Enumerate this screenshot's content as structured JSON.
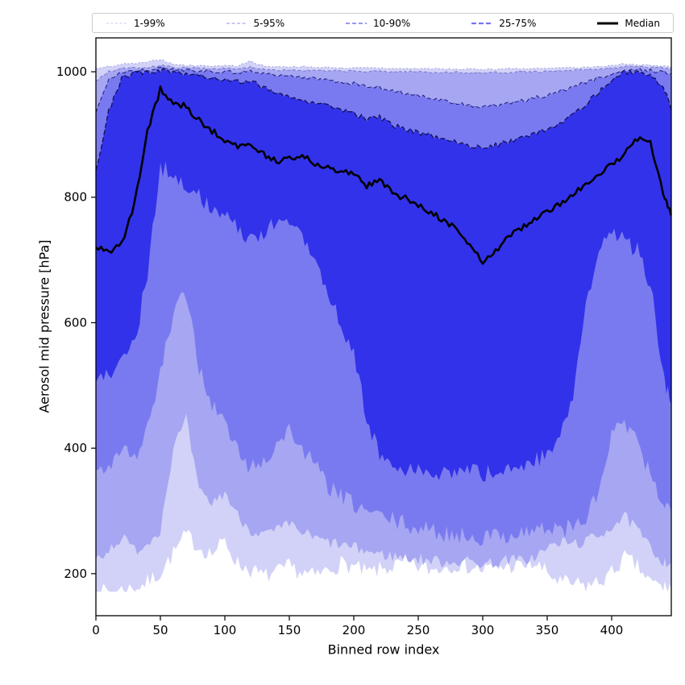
{
  "figure": {
    "background": "#ffffff"
  },
  "chart_data": {
    "type": "area",
    "description": "Percentile fan chart of aerosol mid pressure per binned row index",
    "xlabel": "Binned row index",
    "ylabel": "Aerosol mid pressure [hPa]",
    "xlim": [
      0,
      446.25
    ],
    "ylim": [
      133,
      1054
    ],
    "xticks": [
      0,
      50,
      100,
      150,
      200,
      250,
      300,
      350,
      400
    ],
    "yticks": [
      200,
      400,
      600,
      800,
      1000
    ],
    "grid": false,
    "legend_position": "top",
    "frame_color": "#000000",
    "x": [
      0,
      10,
      20,
      30,
      40,
      50,
      60,
      70,
      80,
      90,
      100,
      110,
      120,
      130,
      140,
      150,
      160,
      170,
      180,
      190,
      200,
      210,
      220,
      230,
      240,
      250,
      260,
      270,
      280,
      290,
      300,
      310,
      320,
      330,
      340,
      350,
      360,
      370,
      380,
      390,
      400,
      410,
      420,
      430,
      440,
      446
    ],
    "series": {
      "p1": [
        171,
        171,
        174,
        177,
        186,
        202,
        232,
        262,
        242,
        232,
        252,
        216,
        206,
        196,
        201,
        211,
        201,
        196,
        206,
        216,
        211,
        201,
        206,
        211,
        216,
        211,
        206,
        211,
        216,
        211,
        206,
        209,
        213,
        211,
        216,
        201,
        186,
        183,
        181,
        186,
        201,
        226,
        211,
        186,
        179,
        177
      ],
      "p5": [
        225,
        238,
        258,
        238,
        248,
        272,
        400,
        445,
        330,
        312,
        330,
        292,
        270,
        262,
        268,
        278,
        266,
        256,
        250,
        246,
        241,
        236,
        231,
        228,
        226,
        223,
        221,
        219,
        220,
        219,
        216,
        218,
        222,
        221,
        226,
        240,
        250,
        248,
        251,
        261,
        276,
        290,
        270,
        240,
        221,
        216
      ],
      "p10": [
        365,
        372,
        405,
        385,
        430,
        520,
        610,
        648,
        530,
        470,
        440,
        395,
        368,
        378,
        405,
        430,
        398,
        372,
        340,
        322,
        310,
        300,
        292,
        285,
        278,
        272,
        268,
        264,
        262,
        260,
        258,
        260,
        263,
        266,
        270,
        272,
        270,
        274,
        288,
        330,
        420,
        442,
        405,
        355,
        315,
        300
      ],
      "p25": [
        505,
        515,
        545,
        565,
        680,
        848,
        840,
        820,
        800,
        785,
        770,
        748,
        736,
        745,
        756,
        762,
        745,
        700,
        645,
        600,
        550,
        445,
        390,
        370,
        360,
        368,
        355,
        362,
        358,
        368,
        358,
        362,
        372,
        368,
        378,
        395,
        420,
        480,
        620,
        720,
        745,
        730,
        715,
        660,
        520,
        470
      ],
      "median": [
        720,
        714,
        726,
        790,
        905,
        972,
        952,
        944,
        922,
        906,
        890,
        880,
        887,
        869,
        858,
        863,
        866,
        854,
        848,
        842,
        836,
        818,
        828,
        806,
        798,
        788,
        776,
        762,
        750,
        724,
        694,
        716,
        736,
        750,
        764,
        776,
        790,
        806,
        820,
        836,
        852,
        870,
        893,
        885,
        806,
        772
      ],
      "p75": [
        843,
        938,
        990,
        998,
        1000,
        1002,
        1000,
        997,
        995,
        991,
        988,
        984,
        987,
        974,
        967,
        961,
        957,
        951,
        946,
        941,
        934,
        924,
        927,
        914,
        909,
        904,
        897,
        891,
        887,
        883,
        880,
        883,
        889,
        894,
        901,
        907,
        919,
        934,
        949,
        967,
        987,
        999,
        1001,
        996,
        976,
        941
      ],
      "p90": [
        935,
        990,
        1000,
        1002,
        1003,
        1005,
        1004,
        1003,
        1002,
        1001,
        1000,
        999,
        1001,
        997,
        995,
        993,
        991,
        989,
        987,
        984,
        981,
        977,
        974,
        970,
        966,
        962,
        958,
        953,
        949,
        946,
        944,
        946,
        949,
        953,
        958,
        963,
        969,
        976,
        983,
        990,
        997,
        1001,
        1003,
        1002,
        1000,
        997
      ],
      "p95": [
        985,
        1000,
        1005,
        1006,
        1007,
        1010,
        1007,
        1006,
        1006,
        1005,
        1005,
        1004,
        1008,
        1004,
        1003,
        1003,
        1002,
        1002,
        1001,
        1001,
        1001,
        1000,
        1001,
        1000,
        1000,
        1000,
        999,
        999,
        999,
        998,
        998,
        999,
        999,
        1000,
        1000,
        1000,
        1001,
        1002,
        1003,
        1004,
        1006,
        1008,
        1008,
        1007,
        1006,
        1005
      ],
      "p99": [
        1005,
        1008,
        1012,
        1013,
        1015,
        1020,
        1012,
        1010,
        1010,
        1009,
        1010,
        1009,
        1017,
        1009,
        1008,
        1008,
        1008,
        1007,
        1007,
        1006,
        1006,
        1006,
        1006,
        1005,
        1005,
        1005,
        1005,
        1004,
        1004,
        1004,
        1004,
        1004,
        1005,
        1005,
        1005,
        1005,
        1006,
        1006,
        1007,
        1008,
        1010,
        1013,
        1011,
        1010,
        1009,
        1008
      ]
    },
    "bands": [
      {
        "label": "1-99%",
        "lower": "p1",
        "upper": "p99",
        "fill": "#d2d2f8",
        "edge": "#9a9ad8",
        "dash": "2 2.5",
        "edge_width": 0.9,
        "jitter_lower": 14,
        "jitter_upper": 1.2
      },
      {
        "label": "5-95%",
        "lower": "p5",
        "upper": "p95",
        "fill": "#a6a6f2",
        "edge": "#7878c8",
        "dash": "4 2.5",
        "edge_width": 1.0,
        "jitter_lower": 10,
        "jitter_upper": 1.5
      },
      {
        "label": "10-90%",
        "lower": "p10",
        "upper": "p90",
        "fill": "#7a7af0",
        "edge": "#23237e",
        "dash": "5 3",
        "edge_width": 1.1,
        "jitter_lower": 15,
        "jitter_upper": 3
      },
      {
        "label": "25-75%",
        "lower": "p25",
        "upper": "p75",
        "fill": "#3232ea",
        "edge": "#12124e",
        "dash": "6 3",
        "edge_width": 1.3,
        "jitter_lower": 14,
        "jitter_upper": 4
      }
    ],
    "median_style": {
      "label": "Median",
      "color": "#000000",
      "width": 2.6,
      "jitter": 5
    },
    "clamp_min": 171,
    "noise_seed": 7,
    "upsample": 5
  },
  "legend": {
    "items": [
      {
        "label": "1-99%",
        "color": "#c9c9f0",
        "dash": "3 2.5",
        "width": 1.1
      },
      {
        "label": "5-95%",
        "color": "#a9a9ee",
        "dash": "4 2.5",
        "width": 1.3
      },
      {
        "label": "10-90%",
        "color": "#8a8af2",
        "dash": "5 3",
        "width": 1.7
      },
      {
        "label": "25-75%",
        "color": "#7575f5",
        "dash": "6 3",
        "width": 2.3
      },
      {
        "label": "Median",
        "color": "#000000",
        "dash": "",
        "width": 3
      }
    ]
  },
  "axes": {
    "xlabel": "Binned row index",
    "ylabel": "Aerosol mid pressure [hPa]",
    "tick_font_px": 15,
    "tick_color": "#000000"
  }
}
